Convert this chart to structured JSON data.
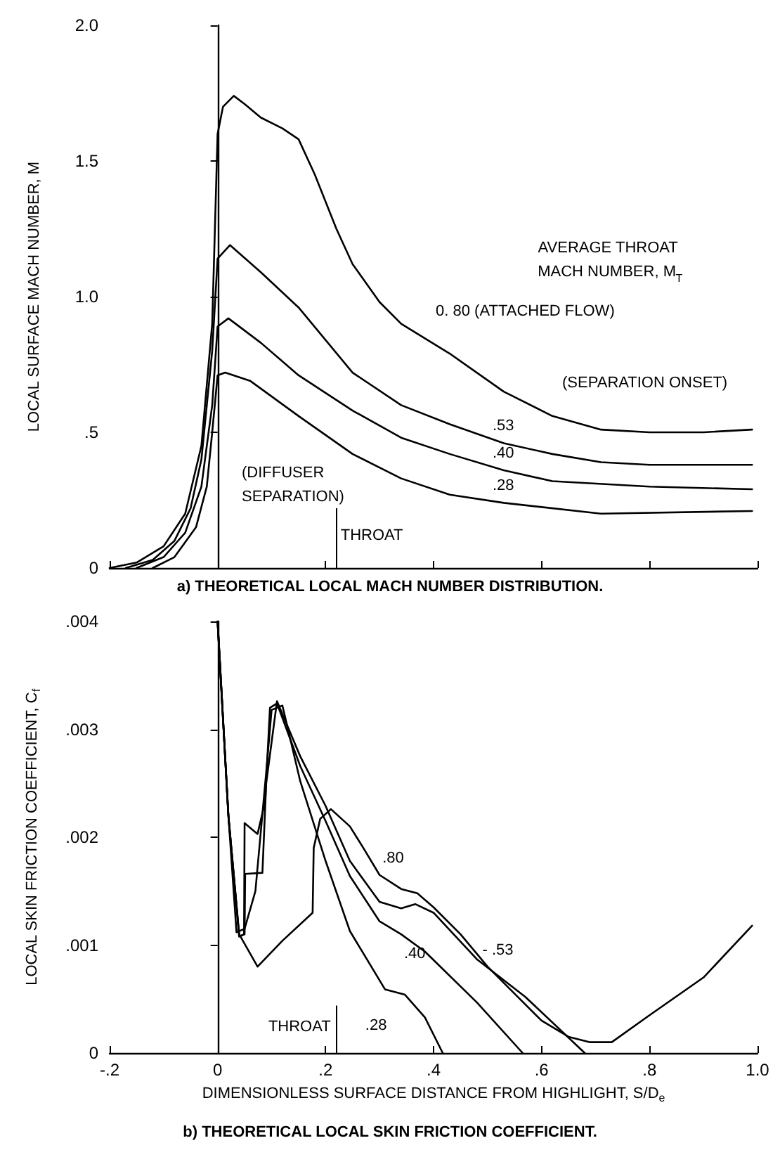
{
  "chart_data": [
    {
      "type": "line",
      "title": "a) THEORETICAL LOCAL MACH NUMBER DISTRIBUTION.",
      "ylabel": "LOCAL SURFACE MACH NUMBER, M",
      "xlim": [
        -0.2,
        1.0
      ],
      "xticks": [
        {
          "value": -0.2,
          "label": null
        },
        {
          "value": 0,
          "label": null
        },
        {
          "value": 0.2,
          "label": null
        },
        {
          "value": 0.4,
          "label": null
        },
        {
          "value": 0.6,
          "label": null
        },
        {
          "value": 0.8,
          "label": null
        },
        {
          "value": 1.0,
          "label": null
        }
      ],
      "ylim": [
        0,
        2.0
      ],
      "yticks": [
        0,
        {
          "value": 0.5,
          "label": ".5"
        },
        {
          "value": 1.0,
          "label": "1.0"
        },
        {
          "value": 1.5,
          "label": "1.5"
        },
        {
          "value": 2.0,
          "label": "2.0"
        }
      ],
      "tick_labels": "y",
      "grid": false,
      "marker": "none",
      "line_style": "solid",
      "series": [
        {
          "name": "0. 80 (ATTACHED FLOW)",
          "color": "#000000",
          "x": [
            -0.2,
            -0.15,
            -0.1,
            -0.06,
            -0.03,
            -0.01,
            0,
            0.01,
            0.03,
            0.05,
            0.08,
            0.12,
            0.15,
            0.18,
            0.22,
            0.25,
            0.3,
            0.34,
            0.43,
            0.53,
            0.62,
            0.71,
            0.8,
            0.9,
            0.99
          ],
          "values": [
            0,
            0.02,
            0.08,
            0.2,
            0.45,
            0.9,
            1.6,
            1.7,
            1.74,
            1.71,
            1.66,
            1.62,
            1.58,
            1.45,
            1.25,
            1.12,
            0.98,
            0.9,
            0.79,
            0.65,
            0.56,
            0.51,
            0.5,
            0.5,
            0.51
          ]
        },
        {
          "name": ".53",
          "color": "#000000",
          "x": [
            -0.17,
            -0.12,
            -0.08,
            -0.05,
            -0.03,
            -0.01,
            0,
            0.023,
            0.08,
            0.15,
            0.25,
            0.34,
            0.43,
            0.53,
            0.62,
            0.71,
            0.8,
            0.99
          ],
          "values": [
            0,
            0.03,
            0.1,
            0.22,
            0.4,
            0.8,
            1.14,
            1.19,
            1.09,
            0.96,
            0.72,
            0.6,
            0.53,
            0.46,
            0.42,
            0.39,
            0.38,
            0.38
          ]
        },
        {
          "name": ".40",
          "color": "#000000",
          "x": [
            -0.15,
            -0.1,
            -0.06,
            -0.03,
            -0.01,
            0,
            0.02,
            0.08,
            0.15,
            0.25,
            0.34,
            0.43,
            0.53,
            0.62,
            0.8,
            0.99
          ],
          "values": [
            0,
            0.04,
            0.13,
            0.3,
            0.6,
            0.89,
            0.92,
            0.83,
            0.71,
            0.58,
            0.48,
            0.42,
            0.36,
            0.32,
            0.3,
            0.29
          ]
        },
        {
          "name": ".28",
          "color": "#000000",
          "x": [
            -0.12,
            -0.08,
            -0.04,
            -0.02,
            -0.01,
            0,
            0.014,
            0.06,
            0.15,
            0.25,
            0.34,
            0.43,
            0.53,
            0.71,
            0.99
          ],
          "values": [
            0,
            0.04,
            0.15,
            0.3,
            0.5,
            0.71,
            0.72,
            0.69,
            0.56,
            0.42,
            0.33,
            0.27,
            0.24,
            0.2,
            0.21
          ]
        }
      ],
      "ref_lines": [
        {
          "axis": "x",
          "value": 0
        },
        {
          "axis": "x",
          "value": 0.22,
          "label": "THROAT"
        }
      ],
      "annotations": [
        "AVERAGE THROAT MACH NUMBER, M$_{T}$",
        "(SEPARATION ONSET)",
        "(DIFFUSER SEPARATION)"
      ]
    },
    {
      "type": "line",
      "title": "b) THEORETICAL LOCAL SKIN FRICTION COEFFICIENT.",
      "xlabel": "DIMENSIONLESS SURFACE DISTANCE FROM HIGHLIGHT, S/D$_{e}$",
      "ylabel": "LOCAL SKIN FRICTION COEFFICIENT, C$_{f}$",
      "xlim": [
        -0.2,
        1.0
      ],
      "xticks": [
        {
          "value": -0.2,
          "label": "-.2"
        },
        0,
        {
          "value": 0.2,
          "label": ".2"
        },
        {
          "value": 0.4,
          "label": ".4"
        },
        {
          "value": 0.6,
          "label": ".6"
        },
        {
          "value": 0.8,
          "label": ".8"
        },
        {
          "value": 1.0,
          "label": "1.0"
        }
      ],
      "ylim": [
        0,
        0.004
      ],
      "yticks": [
        0,
        {
          "value": 0.001,
          "label": ".001"
        },
        {
          "value": 0.002,
          "label": ".002"
        },
        {
          "value": 0.003,
          "label": ".003"
        },
        {
          "value": 0.004,
          "label": ".004"
        }
      ],
      "grid": false,
      "marker": "none",
      "line_style": "solid",
      "series": [
        {
          "name": ".80",
          "color": "#000000",
          "x": [
            0,
            0.02,
            0.04,
            0.074,
            0.12,
            0.176,
            0.178,
            0.19,
            0.21,
            0.245,
            0.27,
            0.3,
            0.34,
            0.37,
            0.4,
            0.45,
            0.5,
            0.55,
            0.6,
            0.65,
            0.69,
            0.73,
            0.8,
            0.9,
            0.99
          ],
          "values": [
            0.004,
            0.0022,
            0.0011,
            0.0008,
            0.00104,
            0.0013,
            0.0019,
            0.00217,
            0.00226,
            0.0021,
            0.0019,
            0.00165,
            0.00152,
            0.00148,
            0.00135,
            0.0011,
            0.0008,
            0.00055,
            0.0003,
            0.00015,
            0.0001,
            0.0001,
            0.00035,
            0.0007,
            0.00118
          ]
        },
        {
          "name": "- .53",
          "color": "#000000",
          "x": [
            0,
            0.02,
            0.04,
            0.05,
            0.051,
            0.083,
            0.09,
            0.11,
            0.153,
            0.2,
            0.245,
            0.3,
            0.34,
            0.366,
            0.4,
            0.48,
            0.57,
            0.68
          ],
          "values": [
            0.004,
            0.0022,
            0.00108,
            0.0011,
            0.00166,
            0.00167,
            0.0025,
            0.00326,
            0.00275,
            0.00229,
            0.00178,
            0.0014,
            0.00134,
            0.00138,
            0.0013,
            0.00087,
            0.00052,
            0
          ]
        },
        {
          "name": ".40",
          "color": "#000000",
          "x": [
            0,
            0.02,
            0.04,
            0.049,
            0.05,
            0.074,
            0.088,
            0.097,
            0.11,
            0.153,
            0.2,
            0.245,
            0.3,
            0.34,
            0.384,
            0.48,
            0.565
          ],
          "values": [
            0.004,
            0.0022,
            0.00108,
            0.0011,
            0.00213,
            0.00203,
            0.00233,
            0.0032,
            0.00324,
            0.00266,
            0.00215,
            0.00164,
            0.00122,
            0.0011,
            0.00094,
            0.00047,
            0
          ]
        },
        {
          "name": ".28",
          "color": "#000000",
          "x": [
            0,
            0.02,
            0.035,
            0.05,
            0.07,
            0.09,
            0.1,
            0.12,
            0.153,
            0.2,
            0.245,
            0.31,
            0.347,
            0.384,
            0.417
          ],
          "values": [
            0.004,
            0.0022,
            0.00112,
            0.00115,
            0.0015,
            0.0026,
            0.00318,
            0.00322,
            0.00252,
            0.00178,
            0.00113,
            0.00059,
            0.00054,
            0.00033,
            0
          ]
        }
      ],
      "ref_lines": [
        {
          "axis": "x",
          "value": 0
        },
        {
          "axis": "x",
          "value": 0.22,
          "label": "THROAT"
        }
      ]
    }
  ]
}
